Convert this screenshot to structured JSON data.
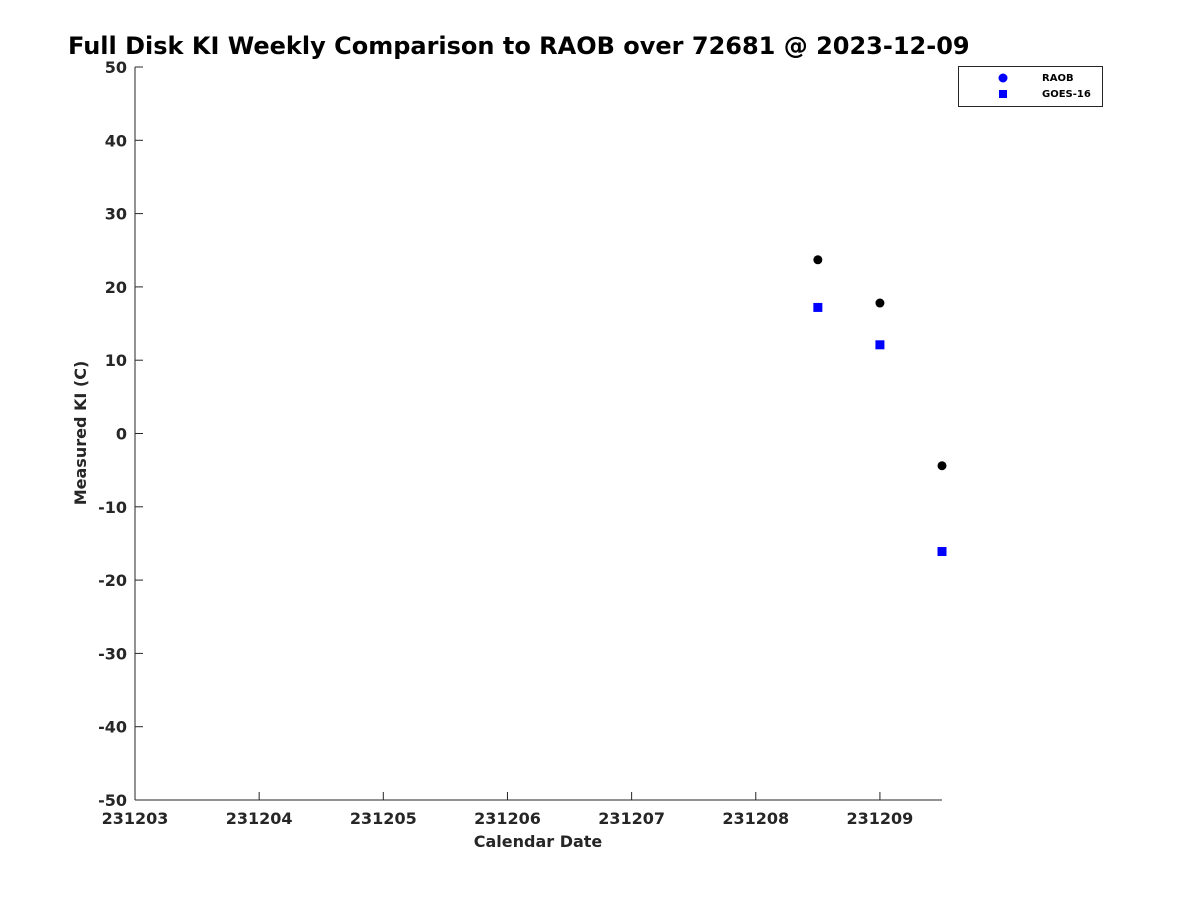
{
  "chart_data": {
    "type": "scatter",
    "title": "Full Disk KI Weekly Comparison to RAOB over 72681 @ 2023-12-09",
    "xlabel": "Calendar Date",
    "ylabel": "Measured KI (C)",
    "xlim": [
      231203,
      231209.5
    ],
    "ylim": [
      -50,
      50
    ],
    "xticks": [
      231203,
      231204,
      231205,
      231206,
      231207,
      231208,
      231209
    ],
    "xtick_labels": [
      "231203",
      "231204",
      "231205",
      "231206",
      "231207",
      "231208",
      "231209"
    ],
    "yticks": [
      50,
      40,
      30,
      20,
      10,
      0,
      -10,
      -20,
      -30,
      -40,
      -50
    ],
    "ytick_labels": [
      "50",
      "40",
      "30",
      "20",
      "10",
      "0",
      "-10",
      "-20",
      "-30",
      "-40",
      "-50"
    ],
    "grid": false,
    "legend_position": "top-right",
    "series": [
      {
        "name": "RAOB",
        "marker": "circle",
        "legend_color": "#0000ff",
        "point_color": "#000000",
        "x": [
          231208.5,
          231209.0,
          231209.5
        ],
        "y": [
          23.7,
          17.8,
          -4.4
        ]
      },
      {
        "name": "GOES-16",
        "marker": "square",
        "legend_color": "#0000ff",
        "point_color": "#0000ff",
        "x": [
          231208.5,
          231209.0,
          231209.5
        ],
        "y": [
          17.2,
          12.1,
          -16.1
        ]
      }
    ]
  }
}
